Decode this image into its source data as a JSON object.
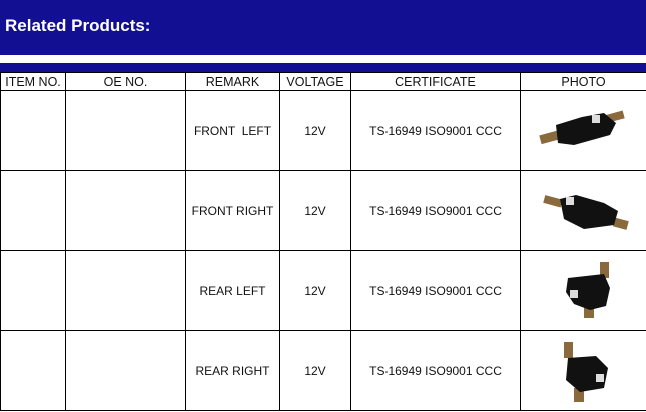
{
  "banner": {
    "title": "Related Products:"
  },
  "colors": {
    "banner": "#130f93"
  },
  "table": {
    "headers": [
      "ITEM NO.",
      "OE NO.",
      "REMARK",
      "VOLTAGE",
      "CERTIFICATE",
      "PHOTO"
    ],
    "rows": [
      {
        "item": "",
        "oe": "",
        "remark": "FRONT  LEFT",
        "voltage": "12V",
        "certificate": "TS-16949 ISO9001 CCC",
        "photo": "door-lock-actuator-image"
      },
      {
        "item": "",
        "oe": "",
        "remark": "FRONT RIGHT",
        "voltage": "12V",
        "certificate": "TS-16949 ISO9001 CCC",
        "photo": "door-lock-actuator-image"
      },
      {
        "item": "",
        "oe": "",
        "remark": "REAR LEFT",
        "voltage": "12V",
        "certificate": "TS-16949 ISO9001 CCC",
        "photo": "door-lock-actuator-image"
      },
      {
        "item": "",
        "oe": "",
        "remark": "REAR RIGHT",
        "voltage": "12V",
        "certificate": "TS-16949 ISO9001 CCC",
        "photo": "door-lock-actuator-image"
      }
    ]
  }
}
